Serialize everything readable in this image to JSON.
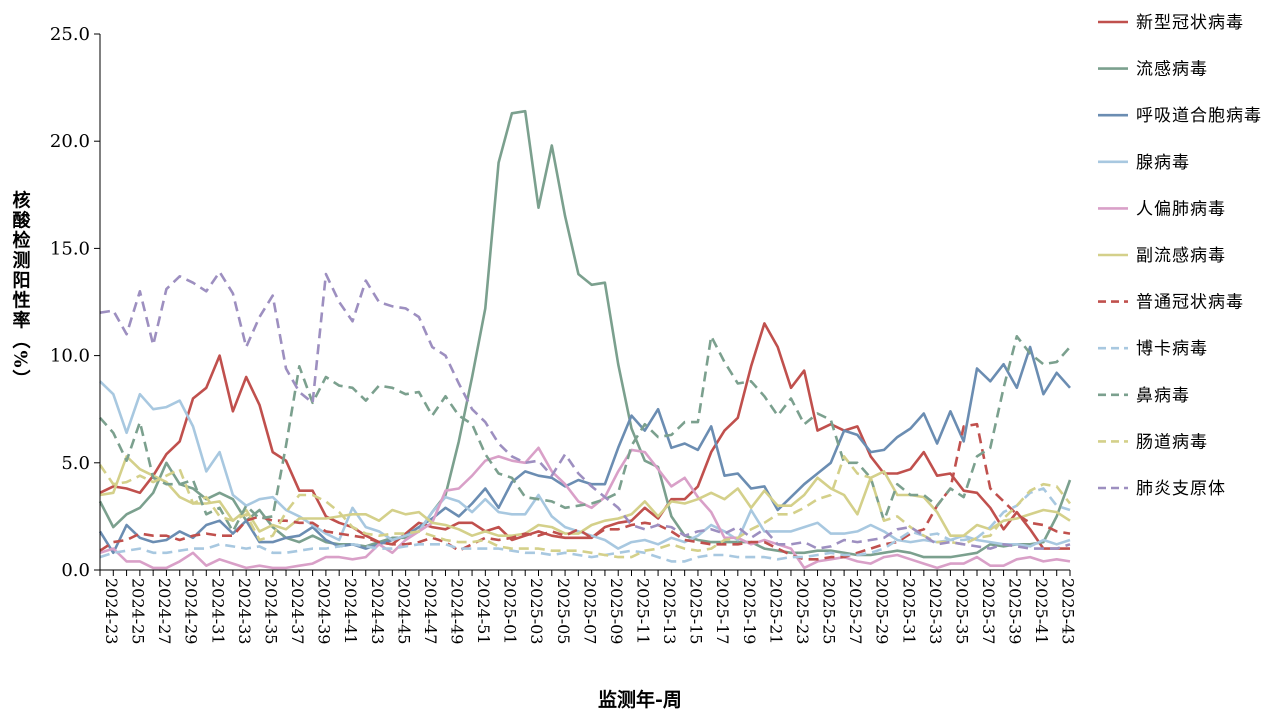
{
  "chart_data": {
    "type": "line",
    "xlabel": "监测年-周",
    "ylabel": "核酸检测阳性率（%）",
    "ylim": [
      0,
      25
    ],
    "yticks": [
      "0.0",
      "5.0",
      "10.0",
      "15.0",
      "20.0",
      "25.0"
    ],
    "x": [
      "2024-23",
      "2024-24",
      "2024-25",
      "2024-26",
      "2024-27",
      "2024-28",
      "2024-29",
      "2024-30",
      "2024-31",
      "2024-32",
      "2024-33",
      "2024-34",
      "2024-35",
      "2024-36",
      "2024-37",
      "2024-38",
      "2024-39",
      "2024-40",
      "2024-41",
      "2024-42",
      "2024-43",
      "2024-44",
      "2024-45",
      "2024-46",
      "2024-47",
      "2024-48",
      "2024-49",
      "2024-50",
      "2024-51",
      "2024-52",
      "2025-01",
      "2025-02",
      "2025-03",
      "2025-04",
      "2025-05",
      "2025-06",
      "2025-07",
      "2025-08",
      "2025-09",
      "2025-10",
      "2025-11",
      "2025-12",
      "2025-13",
      "2025-14",
      "2025-15",
      "2025-16",
      "2025-17",
      "2025-18",
      "2025-19",
      "2025-20",
      "2025-21",
      "2025-22",
      "2025-23",
      "2025-24",
      "2025-25",
      "2025-26",
      "2025-27",
      "2025-28",
      "2025-29",
      "2025-30",
      "2025-31",
      "2025-32",
      "2025-33",
      "2025-34",
      "2025-35",
      "2025-36",
      "2025-37",
      "2025-38",
      "2025-39",
      "2025-40",
      "2025-41",
      "2025-42",
      "2025-43",
      "2025-44"
    ],
    "xticks": [
      "2024-23",
      "2024-25",
      "2024-27",
      "2024-29",
      "2024-31",
      "2024-33",
      "2024-35",
      "2024-37",
      "2024-39",
      "2024-41",
      "2024-43",
      "2024-45",
      "2024-47",
      "2024-49",
      "2024-51",
      "2025-01",
      "2025-03",
      "2025-05",
      "2025-07",
      "2025-09",
      "2025-11",
      "2025-13",
      "2025-15",
      "2025-17",
      "2025-19",
      "2025-21",
      "2025-23",
      "2025-25",
      "2025-27",
      "2025-29",
      "2025-31",
      "2025-33",
      "2025-35",
      "2025-37",
      "2025-39",
      "2025-41",
      "2025-43"
    ],
    "legend_position": "right",
    "series": [
      {
        "name": "新型冠状病毒",
        "color": "#c0504d",
        "dash": "solid",
        "values": [
          3.6,
          3.9,
          3.8,
          3.6,
          4.4,
          5.4,
          6.0,
          8.0,
          8.5,
          10.0,
          7.4,
          9.0,
          7.7,
          5.5,
          5.1,
          3.7,
          3.7,
          2.5,
          2.2,
          2.0,
          1.6,
          1.3,
          1.2,
          1.7,
          2.2,
          2.0,
          1.9,
          2.2,
          2.2,
          1.8,
          2.0,
          1.4,
          1.6,
          1.8,
          1.6,
          1.5,
          1.5,
          1.5,
          2.0,
          2.2,
          2.3,
          2.9,
          2.4,
          3.3,
          3.3,
          3.9,
          5.5,
          6.5,
          7.1,
          9.5,
          11.5,
          10.4,
          8.5,
          9.3,
          6.5,
          6.8,
          6.5,
          6.7,
          5.3,
          4.5,
          4.5,
          4.7,
          5.5,
          4.4,
          4.5,
          3.7,
          3.6,
          2.9,
          1.9,
          2.7,
          1.9,
          1.0,
          1.0,
          1.0
        ]
      },
      {
        "name": "流感病毒",
        "color": "#7ba08e",
        "dash": "solid",
        "values": [
          3.2,
          2.0,
          2.6,
          2.9,
          3.6,
          5.0,
          4.0,
          3.8,
          3.3,
          3.6,
          3.3,
          2.3,
          2.8,
          2.0,
          1.5,
          1.3,
          1.6,
          1.3,
          1.2,
          1.2,
          1.1,
          1.3,
          1.5,
          1.5,
          1.8,
          2.7,
          3.5,
          6.0,
          9.0,
          12.2,
          19.0,
          21.3,
          21.4,
          16.9,
          19.8,
          16.5,
          13.8,
          13.3,
          13.4,
          9.6,
          6.6,
          5.1,
          4.8,
          2.5,
          1.6,
          1.4,
          1.3,
          1.3,
          1.3,
          1.3,
          1.0,
          0.9,
          0.8,
          0.8,
          0.9,
          0.9,
          0.8,
          0.7,
          0.7,
          0.8,
          0.9,
          0.8,
          0.6,
          0.6,
          0.6,
          0.7,
          0.8,
          1.2,
          1.1,
          1.2,
          1.2,
          1.3,
          2.5,
          4.2
        ]
      },
      {
        "name": "呼吸道合胞病毒",
        "color": "#6b8db2",
        "dash": "solid",
        "values": [
          1.8,
          0.8,
          2.1,
          1.5,
          1.3,
          1.4,
          1.8,
          1.5,
          2.1,
          2.3,
          1.7,
          2.3,
          1.3,
          1.3,
          1.5,
          1.6,
          2.0,
          1.4,
          1.1,
          1.2,
          1.0,
          1.2,
          1.4,
          1.6,
          2.0,
          2.4,
          2.9,
          2.5,
          3.1,
          3.8,
          2.9,
          4.1,
          4.6,
          4.4,
          4.3,
          3.9,
          4.2,
          4.0,
          4.0,
          5.7,
          7.2,
          6.5,
          7.5,
          5.7,
          5.9,
          5.6,
          6.7,
          4.4,
          4.5,
          3.8,
          3.9,
          2.8,
          3.4,
          4.0,
          4.5,
          5.0,
          6.5,
          6.3,
          5.5,
          5.6,
          6.2,
          6.6,
          7.3,
          5.9,
          7.4,
          6.0,
          9.4,
          8.8,
          9.6,
          8.5,
          10.4,
          8.2,
          9.2,
          8.5
        ]
      },
      {
        "name": "腺病毒",
        "color": "#a8c8e0",
        "dash": "solid",
        "values": [
          8.8,
          8.2,
          6.4,
          8.2,
          7.5,
          7.6,
          7.9,
          6.7,
          4.6,
          5.5,
          3.5,
          3.0,
          3.3,
          3.4,
          2.8,
          2.5,
          2.1,
          1.7,
          1.4,
          2.9,
          2.0,
          1.8,
          1.4,
          1.6,
          1.8,
          2.7,
          3.4,
          3.2,
          2.7,
          3.3,
          2.7,
          2.6,
          2.6,
          3.5,
          2.5,
          2.0,
          1.8,
          1.6,
          1.4,
          1.0,
          1.3,
          1.4,
          1.2,
          1.5,
          1.3,
          1.6,
          2.1,
          1.8,
          1.4,
          2.8,
          1.8,
          1.8,
          1.8,
          2.0,
          2.2,
          1.7,
          1.7,
          1.8,
          2.1,
          1.8,
          1.4,
          1.3,
          1.4,
          1.3,
          1.4,
          1.6,
          1.4,
          1.3,
          1.2,
          1.2,
          1.1,
          1.4,
          1.2,
          1.4
        ]
      },
      {
        "name": "人偏肺病毒",
        "color": "#d9a0c8",
        "dash": "solid",
        "values": [
          0.8,
          1.0,
          0.4,
          0.4,
          0.1,
          0.1,
          0.4,
          0.8,
          0.2,
          0.5,
          0.3,
          0.1,
          0.2,
          0.1,
          0.1,
          0.2,
          0.3,
          0.6,
          0.6,
          0.5,
          0.6,
          1.2,
          0.8,
          1.4,
          1.8,
          2.2,
          3.7,
          3.8,
          4.4,
          5.1,
          5.3,
          5.1,
          5.0,
          5.7,
          4.6,
          4.0,
          3.2,
          2.9,
          3.4,
          4.6,
          5.6,
          5.5,
          4.7,
          3.9,
          4.3,
          3.4,
          2.7,
          1.5,
          1.5,
          1.2,
          1.4,
          1.2,
          1.0,
          0.1,
          0.4,
          0.5,
          0.6,
          0.4,
          0.3,
          0.6,
          0.7,
          0.5,
          0.3,
          0.1,
          0.3,
          0.3,
          0.6,
          0.2,
          0.2,
          0.5,
          0.6,
          0.4,
          0.5,
          0.4
        ]
      },
      {
        "name": "副流感病毒",
        "color": "#d4d08a",
        "dash": "solid",
        "values": [
          3.5,
          3.6,
          5.3,
          4.7,
          4.4,
          4.1,
          3.4,
          3.1,
          3.1,
          3.2,
          2.3,
          2.8,
          1.8,
          2.1,
          1.9,
          2.4,
          2.4,
          2.4,
          2.5,
          2.6,
          2.6,
          2.3,
          2.8,
          2.6,
          2.7,
          2.2,
          2.1,
          1.9,
          1.6,
          1.8,
          1.6,
          1.6,
          1.7,
          2.1,
          2.0,
          1.7,
          1.7,
          2.1,
          2.3,
          2.4,
          2.6,
          3.2,
          2.5,
          3.2,
          3.1,
          3.3,
          3.6,
          3.3,
          3.8,
          2.9,
          3.7,
          3.0,
          3.0,
          3.5,
          4.3,
          3.8,
          3.5,
          2.6,
          4.3,
          4.6,
          3.5,
          3.5,
          3.4,
          2.7,
          1.6,
          1.6,
          2.1,
          1.9,
          2.3,
          2.4,
          2.6,
          2.8,
          2.7,
          2.3
        ]
      },
      {
        "name": "普通冠状病毒",
        "color": "#c0504d",
        "dash": "dashed",
        "values": [
          0.9,
          1.3,
          1.4,
          1.7,
          1.6,
          1.6,
          1.4,
          1.6,
          1.7,
          1.6,
          1.6,
          2.3,
          2.5,
          2.3,
          2.3,
          2.2,
          2.2,
          1.8,
          1.7,
          1.6,
          1.5,
          1.3,
          1.2,
          1.2,
          1.3,
          1.5,
          1.3,
          0.9,
          1.2,
          1.5,
          1.4,
          1.5,
          1.7,
          1.6,
          1.8,
          1.6,
          1.9,
          1.5,
          1.9,
          1.9,
          2.1,
          2.2,
          2.1,
          1.8,
          1.4,
          1.3,
          1.2,
          1.2,
          1.2,
          1.3,
          1.3,
          1.0,
          0.7,
          0.5,
          0.5,
          0.6,
          0.6,
          0.8,
          1.0,
          1.2,
          1.3,
          1.7,
          1.9,
          3.0,
          3.8,
          6.7,
          6.8,
          3.8,
          3.2,
          2.6,
          2.2,
          2.1,
          1.8,
          1.7
        ]
      },
      {
        "name": "博卡病毒",
        "color": "#a8c8e0",
        "dash": "dashed",
        "values": [
          0.6,
          0.8,
          0.9,
          1.0,
          0.8,
          0.8,
          0.9,
          1.0,
          1.0,
          1.2,
          1.1,
          1.0,
          1.1,
          0.8,
          0.8,
          0.9,
          1.0,
          1.0,
          1.1,
          1.2,
          1.1,
          1.0,
          1.0,
          1.1,
          1.2,
          1.2,
          1.2,
          1.0,
          1.0,
          1.0,
          1.0,
          0.9,
          0.8,
          0.8,
          0.7,
          0.8,
          0.7,
          0.6,
          0.7,
          0.8,
          0.9,
          0.8,
          0.6,
          0.4,
          0.4,
          0.6,
          0.7,
          0.7,
          0.6,
          0.6,
          0.6,
          0.5,
          0.6,
          0.6,
          0.7,
          0.8,
          0.7,
          0.7,
          0.8,
          1.0,
          1.4,
          1.8,
          1.6,
          1.7,
          1.4,
          1.4,
          1.5,
          2.0,
          2.7,
          3.0,
          3.6,
          3.8,
          3.0,
          2.8
        ]
      },
      {
        "name": "鼻病毒",
        "color": "#7ba08e",
        "dash": "dashed",
        "values": [
          7.1,
          6.4,
          5.1,
          6.9,
          4.3,
          4.0,
          4.0,
          4.2,
          2.6,
          2.9,
          1.8,
          3.0,
          2.4,
          2.5,
          5.8,
          9.5,
          7.8,
          9.0,
          8.6,
          8.5,
          7.9,
          8.6,
          8.5,
          8.2,
          8.3,
          7.2,
          8.1,
          7.2,
          6.8,
          5.4,
          4.5,
          4.3,
          3.4,
          3.3,
          3.2,
          2.9,
          3.0,
          3.1,
          3.3,
          3.6,
          5.8,
          6.8,
          6.2,
          6.3,
          6.9,
          6.9,
          10.9,
          9.7,
          8.7,
          8.8,
          8.1,
          7.2,
          8.0,
          6.8,
          7.3,
          7.0,
          5.0,
          5.0,
          4.3,
          2.3,
          4.0,
          3.5,
          3.5,
          3.0,
          3.8,
          3.4,
          5.3,
          5.7,
          8.5,
          10.9,
          10.1,
          9.6,
          9.7,
          10.4
        ]
      },
      {
        "name": "肠道病毒",
        "color": "#d4d08a",
        "dash": "dashed",
        "values": [
          4.9,
          4.0,
          4.1,
          4.4,
          4.1,
          4.4,
          4.7,
          3.1,
          3.4,
          2.5,
          2.3,
          2.6,
          1.4,
          1.6,
          2.7,
          3.5,
          3.5,
          3.2,
          2.7,
          2.0,
          1.7,
          1.6,
          1.7,
          1.7,
          1.8,
          1.6,
          1.4,
          1.3,
          1.3,
          1.4,
          1.1,
          1.0,
          1.0,
          1.0,
          0.9,
          0.9,
          0.9,
          0.8,
          0.7,
          0.6,
          0.6,
          0.9,
          1.0,
          1.2,
          1.0,
          0.9,
          1.0,
          1.4,
          1.5,
          1.9,
          2.2,
          2.6,
          2.6,
          2.9,
          3.3,
          3.5,
          5.3,
          4.5,
          4.3,
          2.3,
          2.5,
          2.0,
          1.6,
          1.3,
          1.3,
          1.2,
          1.5,
          1.6,
          2.4,
          3.0,
          3.7,
          4.0,
          3.9,
          3.1
        ]
      },
      {
        "name": "肺炎支原体",
        "color": "#9d8fc0",
        "dash": "dashed",
        "values": [
          12.0,
          12.1,
          11.0,
          13.0,
          10.5,
          13.1,
          13.7,
          13.4,
          13.0,
          13.9,
          12.9,
          10.4,
          11.8,
          12.8,
          9.4,
          8.3,
          7.8,
          13.8,
          12.5,
          11.6,
          13.5,
          12.5,
          12.3,
          12.2,
          11.8,
          10.4,
          10.0,
          8.7,
          7.5,
          6.9,
          5.9,
          5.3,
          5.0,
          5.1,
          4.4,
          5.4,
          4.5,
          3.9,
          3.4,
          2.9,
          2.1,
          1.9,
          2.1,
          2.0,
          1.6,
          1.8,
          1.9,
          1.7,
          2.0,
          1.5,
          1.9,
          1.2,
          1.2,
          1.3,
          1.0,
          1.1,
          1.4,
          1.3,
          1.4,
          1.5,
          1.9,
          2.0,
          1.6,
          1.2,
          1.3,
          1.2,
          1.1,
          1.0,
          1.2,
          1.1,
          1.0,
          1.0,
          1.0,
          1.2
        ]
      }
    ]
  }
}
